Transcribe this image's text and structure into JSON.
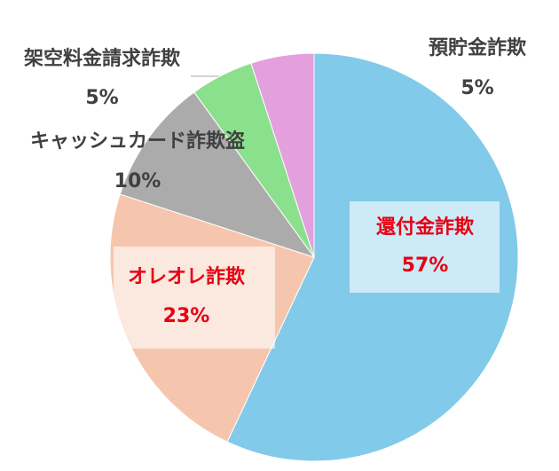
{
  "chart_data": {
    "type": "pie",
    "categories": [
      "還付金詐欺",
      "オレオレ詐欺",
      "キャッシュカード詐欺盗",
      "架空料金請求詐欺",
      "預貯金詐欺"
    ],
    "values": [
      57,
      23,
      10,
      5,
      5
    ],
    "value_labels": [
      "57%",
      "23%",
      "10%",
      "5%",
      "5%"
    ],
    "colors": [
      "#82caea",
      "#f5c6ad",
      "#ababab",
      "#8be08e",
      "#e3a0dd"
    ],
    "label_colors": [
      "#e60012",
      "#e60012",
      "#404040",
      "#404040",
      "#404040"
    ]
  }
}
